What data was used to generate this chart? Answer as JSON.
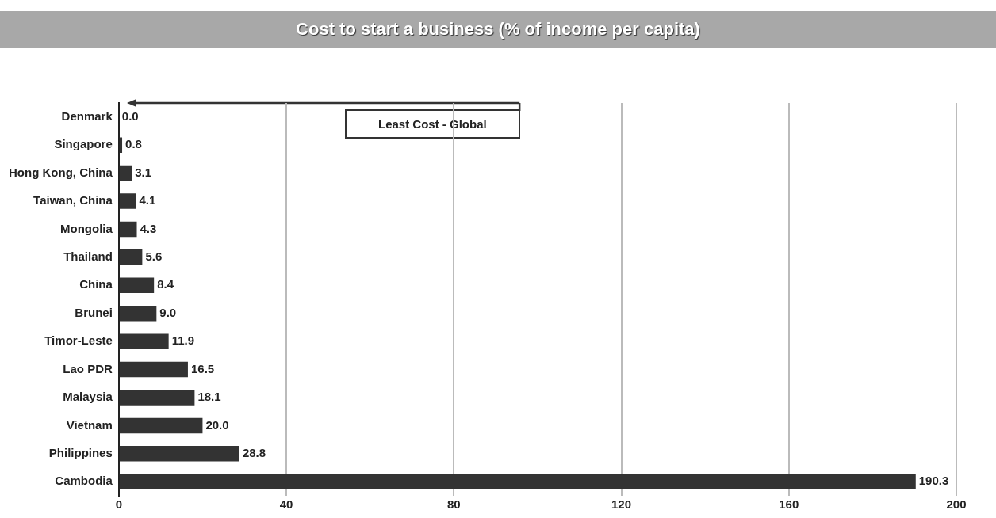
{
  "chart_data": {
    "type": "bar",
    "orientation": "horizontal",
    "title": "Cost to start a business (% of income per capita)",
    "categories": [
      "Denmark",
      "Singapore",
      "Hong Kong, China",
      "Taiwan, China",
      "Mongolia",
      "Thailand",
      "China",
      "Brunei",
      "Timor-Leste",
      "Lao PDR",
      "Malaysia",
      "Vietnam",
      "Philippines",
      "Cambodia"
    ],
    "values": [
      0.0,
      0.8,
      3.1,
      4.1,
      4.3,
      5.6,
      8.4,
      9.0,
      11.9,
      16.5,
      18.1,
      20.0,
      28.8,
      190.3
    ],
    "color": "#333333",
    "xlim": [
      0,
      200
    ],
    "xticks": [
      0,
      40,
      80,
      120,
      160,
      200
    ],
    "value_labels": [
      "0.0",
      "0.8",
      "3.1",
      "4.1",
      "4.3",
      "5.6",
      "8.4",
      "9.0",
      "11.9",
      "16.5",
      "18.1",
      "20.0",
      "28.8",
      "190.3"
    ],
    "grid": "x",
    "annotations": [
      "Least Cost - Global"
    ]
  }
}
